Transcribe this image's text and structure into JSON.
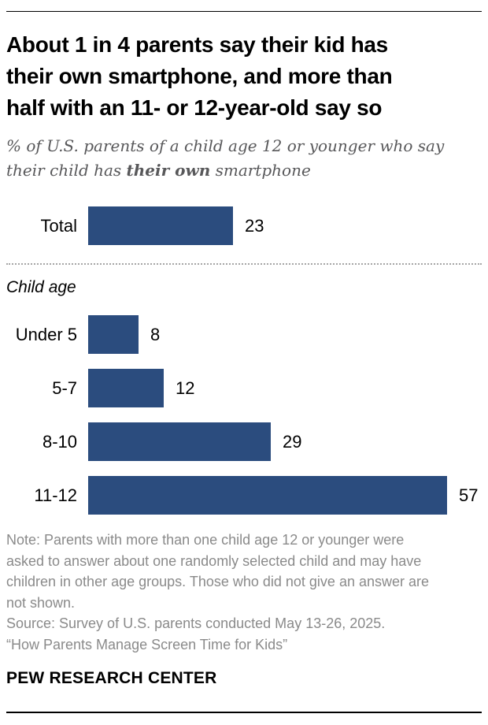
{
  "header": {
    "title_lines": [
      "About 1 in 4 parents say their kid has",
      "their own smartphone, and more than",
      "half with an 11- or 12-year-old say so"
    ],
    "subtitle_line1": "% of U.S. parents of a child age 12 or younger who say",
    "subtitle_line2_prefix": "their child has ",
    "subtitle_line2_bold": "their own",
    "subtitle_line2_suffix": " smartphone"
  },
  "chart_data": {
    "type": "bar",
    "orientation": "horizontal",
    "title": "% of U.S. parents of a child age 12 or younger who say their child has their own smartphone",
    "total": {
      "label": "Total",
      "value": 23
    },
    "group_label": "Child age",
    "categories": [
      "Under 5",
      "5-7",
      "8-10",
      "11-12"
    ],
    "values": [
      8,
      12,
      29,
      57
    ],
    "xlim": [
      0,
      62
    ],
    "value_labels_shown": true,
    "grid": false,
    "legend": false,
    "bar_color": "#2B4C7E"
  },
  "footer": {
    "note_lines": [
      "Note: Parents with more than one child age 12 or younger were",
      "asked to answer about one randomly selected child and may have",
      "children in other age groups. Those who did not give an answer are",
      "not shown."
    ],
    "source": "Source: Survey of U.S. parents conducted May 13-26, 2025.",
    "report": "“How Parents Manage Screen Time for Kids”",
    "brand": "PEW RESEARCH CENTER"
  }
}
